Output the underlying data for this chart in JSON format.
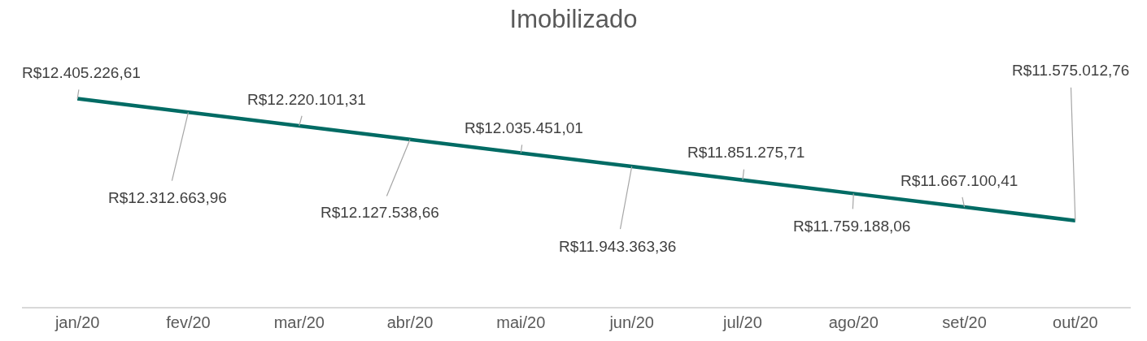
{
  "chart_data": {
    "type": "line",
    "title": "Imobilizado",
    "categories": [
      "jan/20",
      "fev/20",
      "mar/20",
      "abr/20",
      "mai/20",
      "jun/20",
      "jul/20",
      "ago/20",
      "set/20",
      "out/20"
    ],
    "series": [
      {
        "color": "#006b64",
        "values": [
          12405226.61,
          12312663.96,
          12220101.31,
          12127538.66,
          12035451.01,
          11943363.36,
          11851275.71,
          11759188.06,
          11667100.41,
          11575012.76
        ],
        "value_labels": [
          "R$12.405.226,61",
          "R$12.312.663,96",
          "R$12.220.101,31",
          "R$12.127.538,66",
          "R$12.035.451,01",
          "R$11.943.363,36",
          "R$11.851.275,71",
          "R$11.759.188,06",
          "R$11.667.100,41",
          "R$11.575.012,76"
        ]
      }
    ],
    "marker": "none"
  }
}
